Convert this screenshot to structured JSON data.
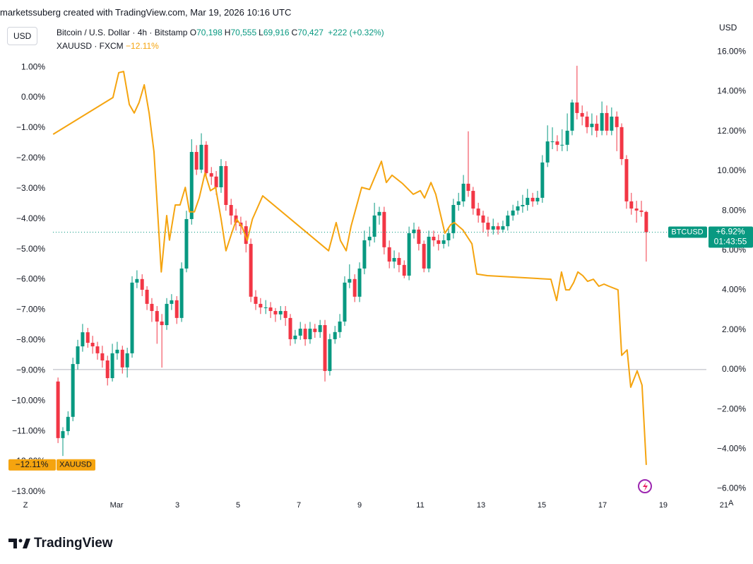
{
  "header": {
    "watermark": "marketssuberg created with TradingView.com, Mar 19, 2026 10:16 UTC",
    "left_scale": "USD",
    "right_scale": "USD",
    "auto_button": "A",
    "logo": "TradingView"
  },
  "legend": [
    {
      "title": "Bitcoin / U.S. Dollar · 4h · Bitstamp",
      "fields": [
        {
          "key": "O",
          "value": "70,198"
        },
        {
          "key": "H",
          "value": "70,555"
        },
        {
          "key": "L",
          "value": "69,916"
        },
        {
          "key": "C",
          "value": "70,427"
        }
      ],
      "change": "+222 (+0.32%)"
    },
    {
      "title": "XAUUSD · FXCM"
    }
  ],
  "chart_data": {
    "type": "candlestick",
    "xlim": [
      -2.84,
      20.42
    ],
    "xticks": [
      {
        "value": -2,
        "label": "Z"
      },
      {
        "value": 1,
        "label": "Mar"
      },
      3,
      5,
      7,
      9,
      11,
      13,
      15,
      17,
      19,
      21
    ],
    "ylim": [
      -6.48,
      17.9
    ],
    "yticks": [
      {
        "value": 16,
        "label": "16.00%"
      },
      {
        "value": 14,
        "label": "14.00%"
      },
      {
        "value": 12,
        "label": "12.00%"
      },
      {
        "value": 10,
        "label": "10.00%"
      },
      {
        "value": 8,
        "label": "8.00%"
      },
      {
        "value": 6,
        "label": "6.00%"
      },
      {
        "value": 4,
        "label": "4.00%"
      },
      {
        "value": 2,
        "label": "2.00%"
      },
      {
        "value": 0,
        "label": "0.00%"
      },
      {
        "value": -2,
        "label": "−2.00%"
      },
      {
        "value": -4,
        "label": "−4.00%"
      },
      {
        "value": -6,
        "label": "−6.00%"
      }
    ],
    "y2lim": [
      -13.21,
      2.75
    ],
    "y2ticks": [
      {
        "value": 1,
        "label": "1.00%"
      },
      {
        "value": 0,
        "label": "0.00%"
      },
      {
        "value": -1,
        "label": "−1.00%"
      },
      {
        "value": -2,
        "label": "−2.00%"
      },
      {
        "value": -3,
        "label": "−3.00%"
      },
      {
        "value": -4,
        "label": "−4.00%"
      },
      {
        "value": -5,
        "label": "−5.00%"
      },
      {
        "value": -6,
        "label": "−6.00%"
      },
      {
        "value": -7,
        "label": "−7.00%"
      },
      {
        "value": -8,
        "label": "−8.00%"
      },
      {
        "value": -9,
        "label": "−9.00%"
      },
      {
        "value": -10,
        "label": "−10.00%"
      },
      {
        "value": -11,
        "label": "−11.00%"
      },
      {
        "value": -12,
        "label": "−12.00%"
      },
      {
        "value": -13,
        "label": "−13.00%"
      }
    ],
    "grid": false,
    "series": [
      {
        "name": "BTCUSD",
        "type": "candlestick",
        "axis": "y",
        "up_color": "#089981",
        "down_color": "#f23645",
        "last_label": "+6.92%",
        "countdown": "01:43:55",
        "x": [
          -0.93,
          -0.77,
          -0.6,
          -0.44,
          -0.28,
          -0.12,
          0.05,
          0.21,
          0.37,
          0.53,
          0.7,
          0.86,
          1.02,
          1.19,
          1.35,
          1.51,
          1.67,
          1.84,
          2,
          2.16,
          2.33,
          2.49,
          2.65,
          2.81,
          2.98,
          3.14,
          3.3,
          3.47,
          3.63,
          3.79,
          3.95,
          4.12,
          4.28,
          4.44,
          4.6,
          4.77,
          4.93,
          5.09,
          5.26,
          5.42,
          5.58,
          5.74,
          5.91,
          6.07,
          6.23,
          6.4,
          6.56,
          6.72,
          6.88,
          7.05,
          7.21,
          7.37,
          7.53,
          7.7,
          7.86,
          8.02,
          8.19,
          8.35,
          8.51,
          8.67,
          8.84,
          9,
          9.16,
          9.33,
          9.49,
          9.65,
          9.81,
          9.98,
          10.14,
          10.3,
          10.47,
          10.63,
          10.79,
          10.95,
          11.12,
          11.28,
          11.44,
          11.6,
          11.77,
          11.93,
          12.09,
          12.26,
          12.42,
          12.58,
          12.74,
          12.91,
          13.07,
          13.23,
          13.4,
          13.56,
          13.72,
          13.88,
          14.05,
          14.21,
          14.37,
          14.53,
          14.7,
          14.86,
          15.02,
          15.19,
          15.35,
          15.51,
          15.67,
          15.84,
          16,
          16.16,
          16.33,
          16.49,
          16.65,
          16.81,
          16.98,
          17.14,
          17.3,
          17.47,
          17.63,
          17.79,
          17.95,
          18.12,
          18.28,
          18.44
        ],
        "open": [
          -0.6,
          -3.45,
          -3.1,
          -2.38,
          0.28,
          1.17,
          1.88,
          1.35,
          1.17,
          0.82,
          0.46,
          -0.43,
          0.82,
          1.0,
          0.11,
          0.82,
          4.38,
          4.56,
          4.02,
          3.31,
          2.95,
          2.42,
          2.24,
          3.31,
          3.49,
          2.6,
          5.09,
          7.58,
          10.96,
          10.07,
          11.32,
          9.89,
          9.72,
          9.18,
          10.25,
          8.29,
          7.76,
          7.4,
          7.22,
          6.33,
          3.67,
          3.31,
          3.13,
          3.13,
          2.95,
          2.78,
          2.95,
          2.6,
          1.53,
          1.71,
          2.06,
          1.53,
          2.06,
          1.89,
          2.24,
          -0.07,
          1.53,
          1.89,
          2.42,
          4.38,
          4.56,
          3.67,
          5.09,
          6.51,
          6.69,
          7.76,
          7.94,
          6.16,
          5.44,
          5.62,
          5.27,
          4.73,
          6.87,
          7.05,
          6.33,
          5.09,
          6.69,
          6.51,
          6.33,
          6.51,
          6.87,
          8.29,
          8.47,
          9.36,
          9.0,
          8.11,
          7.76,
          7.4,
          7.05,
          7.22,
          7.05,
          7.22,
          7.76,
          8.01,
          8.22,
          8.29,
          8.65,
          8.47,
          8.65,
          10.43,
          11.49,
          11.49,
          11.32,
          11.32,
          12.03,
          13.45,
          12.92,
          12.74,
          12.21,
          12.38,
          12.03,
          12.92,
          12.03,
          12.74,
          12.21,
          10.6,
          8.47,
          8.11,
          8.01,
          7.94
        ],
        "high": [
          -0.4,
          -2.9,
          -2.1,
          0.6,
          1.5,
          2.3,
          2.1,
          1.7,
          1.4,
          1.2,
          0.7,
          1.3,
          1.4,
          1.2,
          1.1,
          4.7,
          5.0,
          4.8,
          4.2,
          3.6,
          3.2,
          2.8,
          3.6,
          3.8,
          3.7,
          5.4,
          8.0,
          11.6,
          11.3,
          11.9,
          11.5,
          10.2,
          10.0,
          10.6,
          10.5,
          8.6,
          8.1,
          7.7,
          7.5,
          6.6,
          4.0,
          3.6,
          3.5,
          3.4,
          3.1,
          3.2,
          3.2,
          2.8,
          2.0,
          2.4,
          2.3,
          2.4,
          2.3,
          2.5,
          2.5,
          1.8,
          2.2,
          2.8,
          4.7,
          5.3,
          4.8,
          5.4,
          7.0,
          7.2,
          8.4,
          8.2,
          8.2,
          6.5,
          6.0,
          5.9,
          5.5,
          7.2,
          7.4,
          7.2,
          6.5,
          7.0,
          7.0,
          6.8,
          6.8,
          7.1,
          8.6,
          8.9,
          9.8,
          12.0,
          9.2,
          8.4,
          8.0,
          7.7,
          7.6,
          7.4,
          7.5,
          8.0,
          8.3,
          8.5,
          8.8,
          9.1,
          8.9,
          9.0,
          10.8,
          12.3,
          12.2,
          11.8,
          12.1,
          12.9,
          13.6,
          15.3,
          13.3,
          13.0,
          12.9,
          12.8,
          13.5,
          13.3,
          13.2,
          13.0,
          12.4,
          10.8,
          8.9,
          8.5,
          8.5,
          8.0
        ],
        "low": [
          -3.7,
          -4.35,
          -3.3,
          -2.6,
          0.0,
          0.9,
          1.1,
          0.8,
          0.5,
          0.1,
          -0.8,
          -0.6,
          0.5,
          -0.2,
          -0.4,
          0.6,
          4.1,
          3.7,
          3.0,
          2.4,
          1.3,
          0.1,
          2.0,
          3.0,
          2.3,
          2.4,
          4.9,
          7.3,
          9.8,
          9.9,
          9.6,
          9.3,
          8.8,
          8.9,
          8.0,
          7.3,
          7.0,
          6.8,
          5.9,
          3.4,
          3.0,
          2.8,
          2.8,
          2.6,
          2.4,
          2.5,
          2.2,
          1.2,
          1.3,
          1.5,
          1.2,
          1.3,
          1.6,
          1.6,
          -0.6,
          -0.3,
          1.3,
          1.6,
          2.2,
          4.1,
          3.4,
          3.4,
          4.8,
          6.2,
          6.4,
          7.3,
          5.8,
          5.1,
          5.1,
          4.9,
          4.6,
          4.5,
          6.6,
          6.0,
          4.9,
          4.9,
          6.2,
          6.0,
          6.1,
          6.2,
          6.6,
          8.0,
          8.2,
          8.7,
          7.8,
          7.4,
          6.9,
          6.7,
          6.8,
          6.8,
          6.9,
          7.0,
          7.5,
          7.8,
          7.9,
          8.0,
          8.2,
          8.3,
          8.4,
          10.2,
          11.1,
          11.0,
          11.0,
          11.0,
          11.8,
          12.6,
          12.3,
          11.9,
          11.8,
          11.7,
          11.8,
          11.8,
          11.8,
          11.0,
          10.3,
          8.1,
          7.8,
          7.4,
          7.7,
          5.44
        ],
        "close": [
          -3.45,
          -3.1,
          -2.38,
          0.28,
          1.17,
          1.88,
          1.35,
          1.17,
          0.82,
          0.46,
          -0.43,
          0.82,
          1.0,
          0.11,
          0.82,
          4.38,
          4.56,
          4.02,
          3.31,
          2.95,
          2.42,
          2.24,
          3.31,
          3.49,
          2.6,
          5.09,
          7.58,
          10.96,
          10.07,
          11.32,
          9.89,
          9.72,
          9.18,
          10.25,
          8.29,
          7.76,
          7.4,
          7.22,
          6.33,
          3.67,
          3.31,
          3.13,
          3.13,
          2.95,
          2.78,
          2.95,
          2.6,
          1.53,
          1.71,
          2.06,
          1.53,
          2.06,
          1.89,
          2.24,
          -0.07,
          1.53,
          1.89,
          2.42,
          4.38,
          4.56,
          3.67,
          5.09,
          6.51,
          6.69,
          7.76,
          7.94,
          6.16,
          5.44,
          5.62,
          5.27,
          4.73,
          6.87,
          7.05,
          6.33,
          5.09,
          6.69,
          6.51,
          6.33,
          6.51,
          6.87,
          8.29,
          8.47,
          9.36,
          9.0,
          8.11,
          7.76,
          7.4,
          7.05,
          7.22,
          7.05,
          7.22,
          7.76,
          8.01,
          8.22,
          8.29,
          8.65,
          8.47,
          8.65,
          10.43,
          11.49,
          11.49,
          11.32,
          11.32,
          12.03,
          13.45,
          12.92,
          12.74,
          12.21,
          12.38,
          12.03,
          12.92,
          12.03,
          12.74,
          12.21,
          10.6,
          8.47,
          8.11,
          8.01,
          7.94,
          6.92
        ]
      },
      {
        "name": "XAUUSD",
        "type": "line",
        "axis": "y2",
        "color": "#f5a40f",
        "last_label": "−12.11%",
        "x": [
          -1.09,
          0.88,
          1.07,
          1.23,
          1.42,
          1.58,
          1.74,
          1.91,
          2.07,
          2.23,
          2.47,
          2.65,
          2.74,
          2.93,
          3.09,
          3.26,
          3.4,
          3.56,
          3.72,
          3.91,
          4.09,
          4.26,
          4.44,
          4.6,
          4.79,
          4.95,
          5.12,
          5.3,
          5.47,
          5.81,
          7.98,
          8.23,
          8.37,
          8.56,
          8.72,
          9.07,
          9.33,
          9.72,
          9.88,
          10.07,
          10.42,
          10.77,
          11,
          11.14,
          11.35,
          11.51,
          11.81,
          12,
          12.12,
          12.4,
          12.7,
          12.86,
          13.21,
          15.3,
          15.49,
          15.65,
          15.79,
          15.91,
          16.05,
          16.19,
          16.35,
          16.51,
          16.7,
          16.88,
          17.05,
          17.21,
          17.51,
          17.63,
          17.81,
          17.93,
          18.14,
          18.3,
          18.44
        ],
        "values": [
          -1.21,
          0,
          0.82,
          0.86,
          -0.23,
          -0.51,
          -0.16,
          0.42,
          -0.51,
          -1.79,
          -5.75,
          -3.89,
          -4.7,
          -3.54,
          -3.54,
          -2.96,
          -3.77,
          -3.77,
          -3.31,
          -2.49,
          -3.07,
          -2.96,
          -4.01,
          -5.05,
          -4.47,
          -4.01,
          -4.24,
          -4.71,
          -4.01,
          -3.24,
          -5.05,
          -4.12,
          -4.71,
          -5.05,
          -4.24,
          -2.96,
          -3.03,
          -2.1,
          -2.8,
          -2.56,
          -2.84,
          -3.19,
          -3.07,
          -3.31,
          -2.8,
          -3.19,
          -4.47,
          -4.19,
          -4.12,
          -4.36,
          -4.82,
          -5.82,
          -5.87,
          -5.99,
          -6.69,
          -5.75,
          -6.34,
          -6.34,
          -6.1,
          -5.75,
          -5.87,
          -6.06,
          -5.99,
          -6.22,
          -6.15,
          -6.22,
          -6.34,
          -8.5,
          -8.32,
          -9.55,
          -9.01,
          -9.48,
          -12.11
        ]
      }
    ]
  }
}
